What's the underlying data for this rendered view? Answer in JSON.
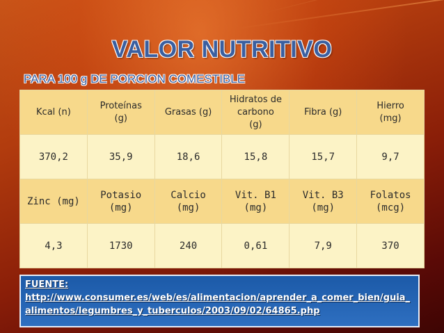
{
  "title": "VALOR NUTRITIVO",
  "subtitle": "PARA 100 g DE PORCION COMESTIBLE",
  "table": {
    "header1": [
      "Kcal (n)",
      "Proteínas\n(g)",
      "Grasas (g)",
      "Hidratos de\ncarbono\n(g)",
      "Fibra (g)",
      "Hierro\n(mg)"
    ],
    "values1": [
      "370,2",
      "35,9",
      "18,6",
      "15,8",
      "15,7",
      "9,7"
    ],
    "header2": [
      "Zinc (mg)",
      "Potasio\n(mg)",
      "Calcio\n(mg)",
      "Vit. B1\n(mg)",
      "Vit. B3\n(mg)",
      "Folatos\n(mcg)"
    ],
    "values2": [
      "4,3",
      "1730",
      "240",
      "0,61",
      "7,9",
      "370"
    ]
  },
  "source": {
    "label": "FUENTE:",
    "url": "http://www.consumer.es/web/es/alimentacion/aprender_a_comer_bien/guia_alimentos/legumbres_y_tuberculos/2003/09/02/64865.php"
  },
  "colors": {
    "title": "#3a5fa0",
    "header_cell": "#f7d98b",
    "value_cell": "#fcf3c6",
    "source_box": "#1c5aa8"
  }
}
